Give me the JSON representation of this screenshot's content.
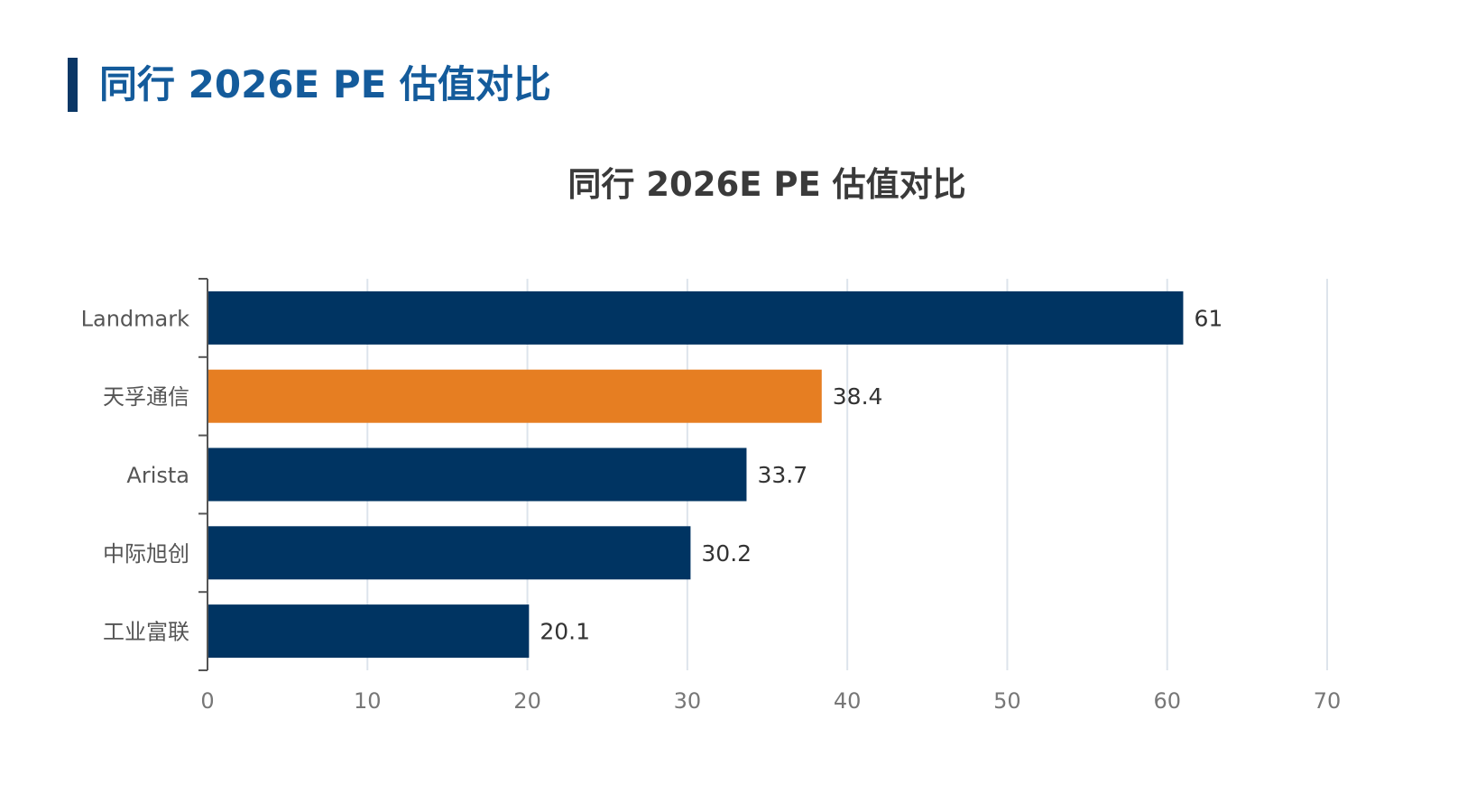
{
  "header": {
    "title": "同行 2026E PE 估值对比"
  },
  "colors": {
    "header_accent": "#0b3766",
    "header_text": "#145b9b",
    "default_bar": "#003462",
    "highlight_bar": "#e67e22",
    "grid": "#dde4ec"
  },
  "chart_data": {
    "type": "bar",
    "orientation": "horizontal",
    "title": "同行 2026E PE 估值对比",
    "categories": [
      "Landmark",
      "天孚通信",
      "Arista",
      "中际旭创",
      "工业富联"
    ],
    "values": [
      61,
      38.4,
      33.7,
      30.2,
      20.1
    ],
    "data_labels": [
      "61",
      "38.4",
      "33.7",
      "30.2",
      "20.1"
    ],
    "highlight": "天孚通信",
    "xlim": [
      0,
      70
    ],
    "xticks": [
      0,
      10,
      20,
      30,
      40,
      50,
      60,
      70
    ],
    "xlabel": "",
    "ylabel": "",
    "grid": "vertical"
  }
}
